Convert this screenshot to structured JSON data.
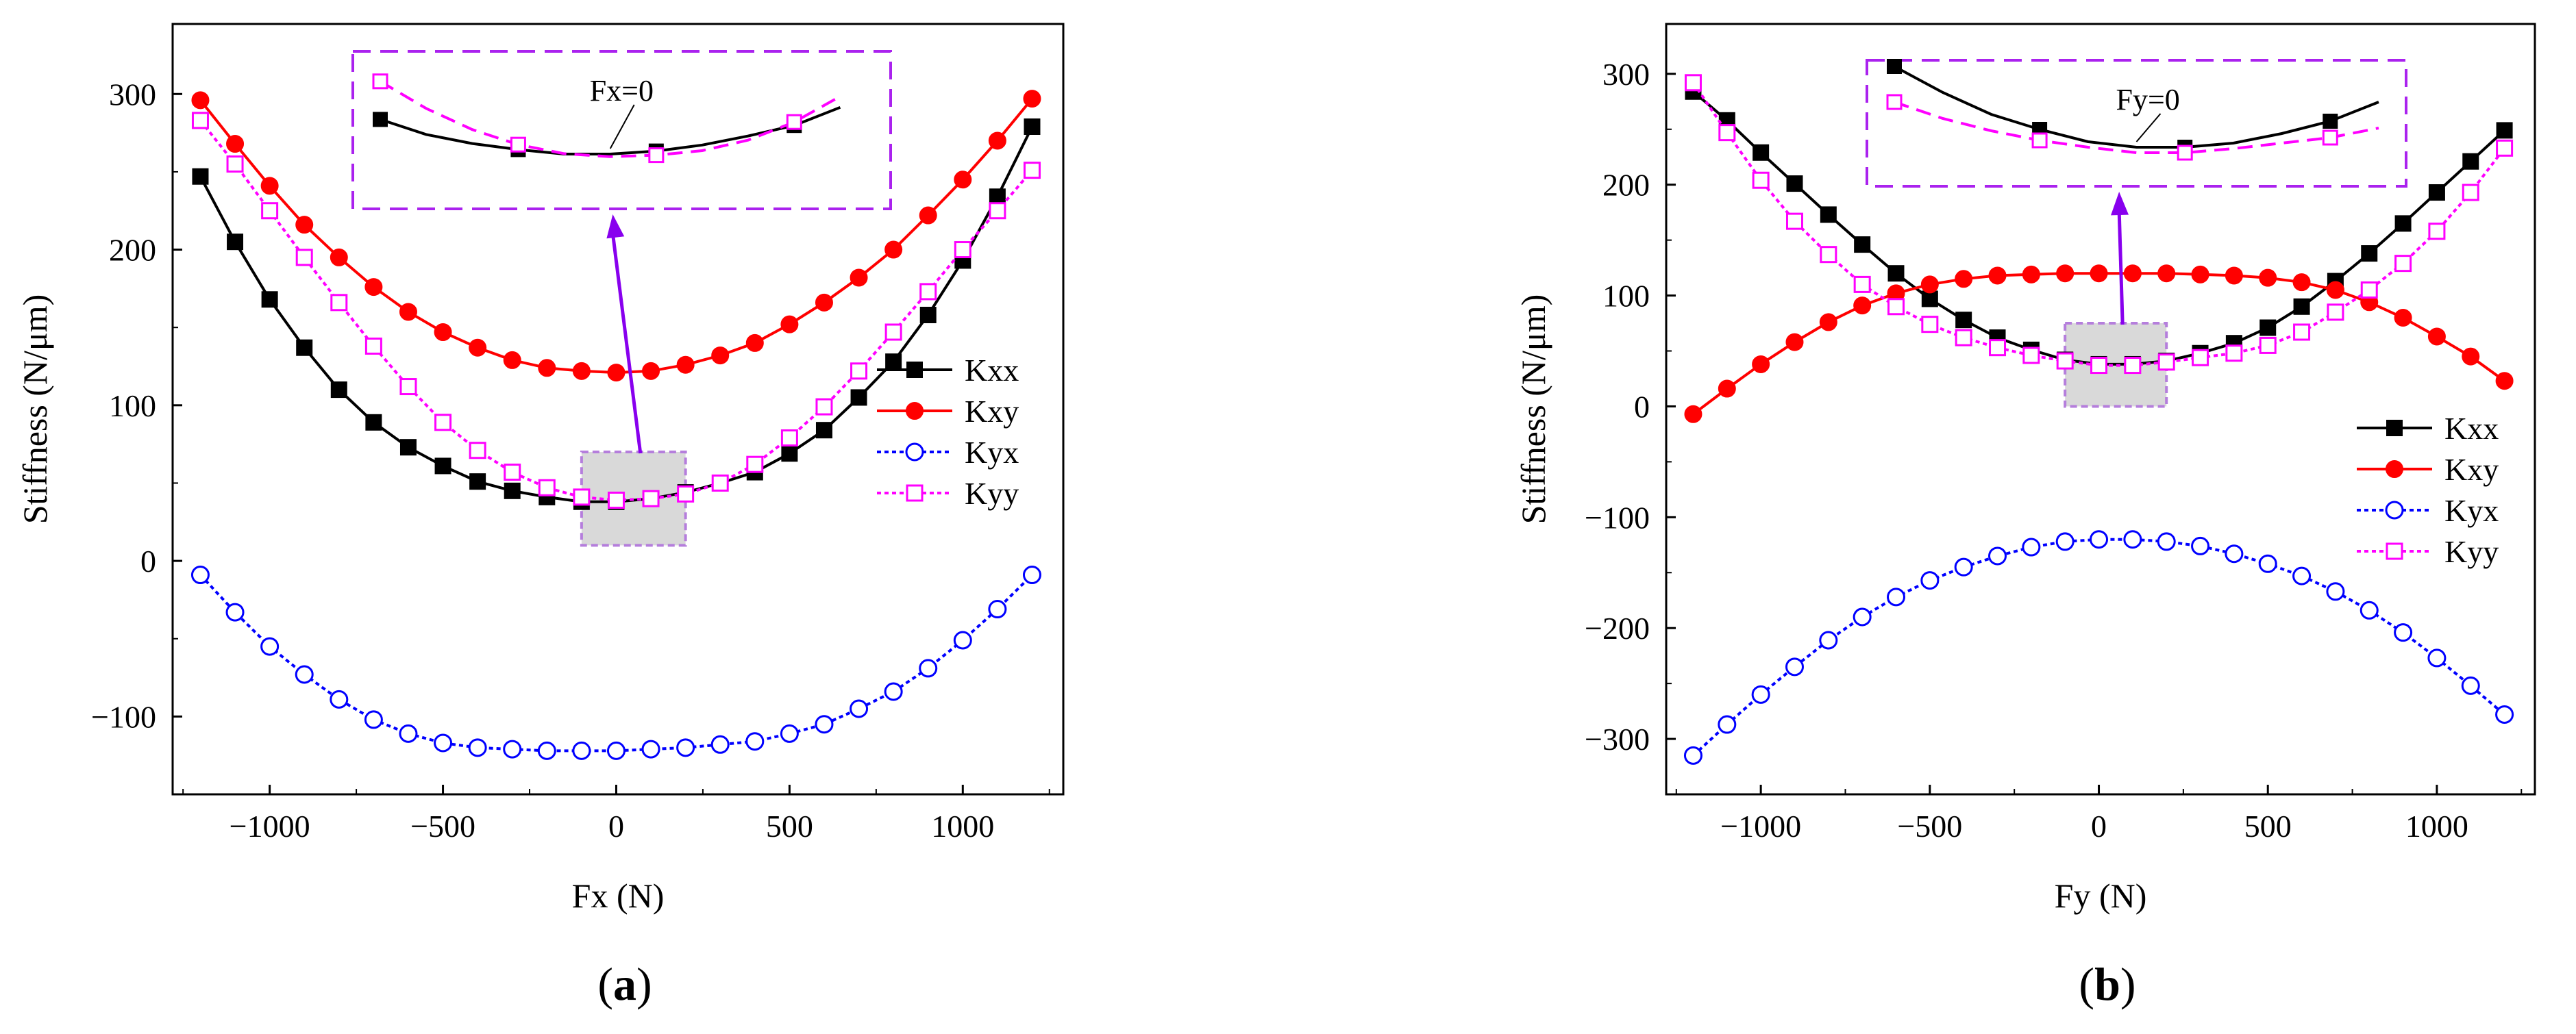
{
  "chart_data": [
    {
      "type": "line",
      "panel_label": "a",
      "xlabel": "Fx (N)",
      "ylabel": "Stiffness (N/μm)",
      "xlim": [
        -1280,
        1290
      ],
      "ylim": [
        -150,
        345
      ],
      "xticks": [
        -1000,
        -500,
        0,
        500,
        1000
      ],
      "xtick_labels": [
        "−1000",
        "−500",
        "0",
        "500",
        "1000"
      ],
      "yticks": [
        -100,
        0,
        100,
        200,
        300
      ],
      "ytick_labels": [
        "−100",
        "0",
        "100",
        "200",
        "300"
      ],
      "legend_position": "right",
      "x": [
        -1200,
        -1100,
        -1000,
        -900,
        -800,
        -700,
        -600,
        -500,
        -400,
        -300,
        -200,
        -100,
        0,
        100,
        200,
        300,
        400,
        500,
        600,
        700,
        800,
        900,
        1000,
        1100,
        1200
      ],
      "series": [
        {
          "name": "Kxx",
          "color": "#000000",
          "marker": "square-filled",
          "dash": "solid",
          "values": [
            247,
            205,
            168,
            137,
            110,
            89,
            73,
            61,
            51,
            45,
            41,
            38,
            38,
            40,
            44,
            50,
            57,
            69,
            84,
            105,
            128,
            158,
            193,
            234,
            279
          ]
        },
        {
          "name": "Kxy",
          "color": "#ff0000",
          "marker": "circle-filled",
          "dash": "solid",
          "values": [
            296,
            268,
            241,
            216,
            195,
            176,
            160,
            147,
            137,
            129,
            124,
            122,
            121,
            122,
            126,
            132,
            140,
            152,
            166,
            182,
            200,
            222,
            245,
            270,
            297
          ]
        },
        {
          "name": "Kyx",
          "color": "#0000ff",
          "marker": "circle-open",
          "dash": "dotted",
          "values": [
            -9,
            -33,
            -55,
            -73,
            -89,
            -102,
            -111,
            -117,
            -120,
            -121,
            -122,
            -122,
            -122,
            -121,
            -120,
            -118,
            -116,
            -111,
            -105,
            -95,
            -84,
            -69,
            -51,
            -31,
            -9
          ]
        },
        {
          "name": "Kyy",
          "color": "#ff00ff",
          "marker": "square-open",
          "dash": "dotted",
          "values": [
            283,
            255,
            225,
            195,
            166,
            138,
            112,
            89,
            71,
            57,
            47,
            41,
            39,
            40,
            43,
            50,
            62,
            79,
            99,
            122,
            147,
            173,
            200,
            225,
            251
          ]
        }
      ],
      "inset_label": "Fx=0"
    },
    {
      "type": "line",
      "panel_label": "b",
      "xlabel": "Fy (N)",
      "ylabel": "Stiffness (N/μm)",
      "xlim": [
        -1280,
        1290
      ],
      "ylim": [
        -350,
        345
      ],
      "xticks": [
        -1000,
        -500,
        0,
        500,
        1000
      ],
      "xtick_labels": [
        "−1000",
        "−500",
        "0",
        "500",
        "1000"
      ],
      "yticks": [
        -300,
        -200,
        -100,
        0,
        100,
        200,
        300
      ],
      "ytick_labels": [
        "−300",
        "−200",
        "−100",
        "0",
        "100",
        "200",
        "300"
      ],
      "legend_position": "right",
      "x": [
        -1200,
        -1100,
        -1000,
        -900,
        -800,
        -700,
        -600,
        -500,
        -400,
        -300,
        -200,
        -100,
        0,
        100,
        200,
        300,
        400,
        500,
        600,
        700,
        800,
        900,
        1000,
        1100,
        1200
      ],
      "series": [
        {
          "name": "Kxx",
          "color": "#000000",
          "marker": "square-filled",
          "dash": "solid",
          "values": [
            284,
            258,
            229,
            201,
            173,
            146,
            120,
            97,
            78,
            62,
            51,
            42,
            38,
            38,
            41,
            48,
            57,
            71,
            90,
            113,
            138,
            165,
            193,
            221,
            249
          ]
        },
        {
          "name": "Kxy",
          "color": "#ff0000",
          "marker": "circle-filled",
          "dash": "solid",
          "values": [
            -7,
            16,
            38,
            58,
            76,
            91,
            102,
            110,
            115,
            118,
            119,
            120,
            120,
            120,
            120,
            119,
            118,
            116,
            112,
            105,
            94,
            80,
            63,
            45,
            23
          ]
        },
        {
          "name": "Kyx",
          "color": "#0000ff",
          "marker": "circle-open",
          "dash": "dotted",
          "values": [
            -315,
            -287,
            -260,
            -235,
            -211,
            -190,
            -172,
            -157,
            -145,
            -135,
            -127,
            -122,
            -120,
            -120,
            -122,
            -126,
            -133,
            -142,
            -153,
            -167,
            -184,
            -204,
            -227,
            -252,
            -278
          ]
        },
        {
          "name": "Kyy",
          "color": "#ff00ff",
          "marker": "square-open",
          "dash": "dotted",
          "values": [
            292,
            247,
            204,
            167,
            137,
            110,
            90,
            74,
            62,
            53,
            46,
            41,
            37,
            37,
            40,
            44,
            48,
            55,
            67,
            85,
            105,
            129,
            158,
            193,
            233
          ]
        }
      ],
      "inset_label": "Fy=0"
    }
  ]
}
